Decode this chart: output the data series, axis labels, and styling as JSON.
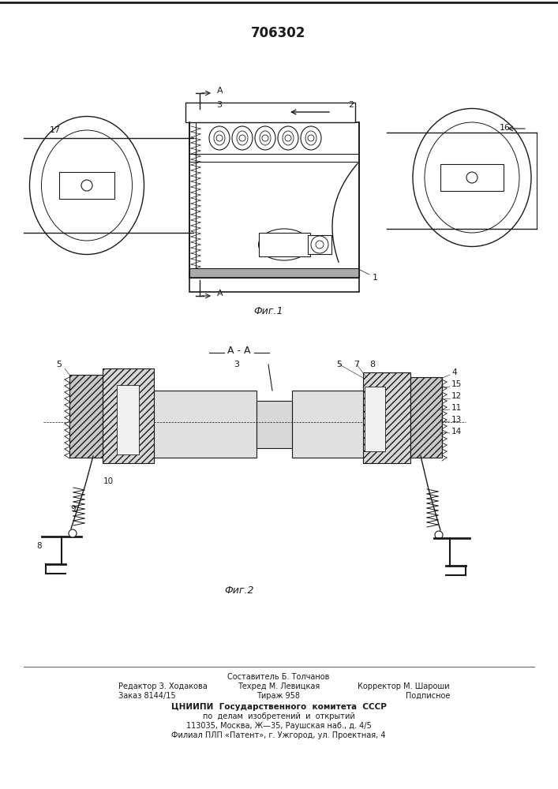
{
  "title": "706302",
  "line_color": "#1a1a1a",
  "fig1_caption": "Фиг.1",
  "fig2_caption": "Фиг.2",
  "footer_texts": [
    [
      353,
      858,
      "Составитель Б. Толчанов",
      7.0,
      "center"
    ],
    [
      150,
      870,
      "Редактор З. Ходакова",
      7.0,
      "left"
    ],
    [
      353,
      870,
      "Техред М. Левицкая",
      7.0,
      "center"
    ],
    [
      570,
      870,
      "Корректор М. Шароши",
      7.0,
      "right"
    ],
    [
      150,
      882,
      "Заказ 8144/15",
      7.0,
      "left"
    ],
    [
      353,
      882,
      "Тираж 958",
      7.0,
      "center"
    ],
    [
      570,
      882,
      "Подписное",
      7.0,
      "right"
    ],
    [
      353,
      896,
      "ЦНИИПИ  Государственного  комитета  СССР",
      7.5,
      "center"
    ],
    [
      353,
      908,
      "по  делам  изобретений  и  открытий",
      7.0,
      "center"
    ],
    [
      353,
      920,
      "113035, Москва, Ж—35, Раушская наб., д. 4/5",
      7.0,
      "center"
    ],
    [
      353,
      932,
      "Филиал ПЛП «Патент», г. Ужгород, ул. Проектная, 4",
      7.0,
      "center"
    ]
  ]
}
